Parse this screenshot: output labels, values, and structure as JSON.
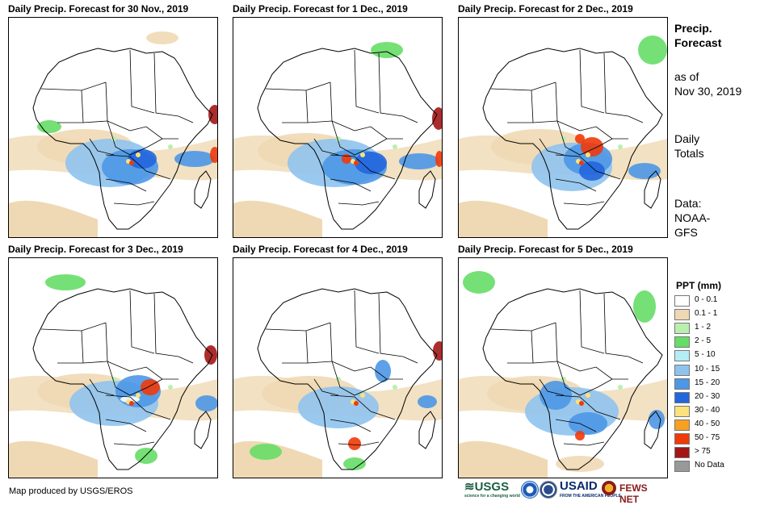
{
  "panels": [
    {
      "title": "Daily Precip. Forecast for 30 Nov., 2019"
    },
    {
      "title": "Daily Precip. Forecast for 1 Dec., 2019"
    },
    {
      "title": "Daily Precip. Forecast for 2 Dec., 2019"
    },
    {
      "title": "Daily Precip. Forecast for 3 Dec., 2019"
    },
    {
      "title": "Daily Precip. Forecast for 4 Dec., 2019"
    },
    {
      "title": "Daily Precip. Forecast for 5 Dec., 2019"
    }
  ],
  "side": {
    "heading_1": "Precip.",
    "heading_2": "Forecast",
    "asof_1": "as of",
    "asof_2": "Nov 30, 2019",
    "totals_1": "Daily",
    "totals_2": "Totals",
    "data_1": "Data:",
    "data_2": "NOAA-",
    "data_3": "GFS"
  },
  "legend": {
    "title": "PPT (mm)",
    "items": [
      {
        "label": "0 - 0.1",
        "color": "#ffffff"
      },
      {
        "label": "0.1 - 1",
        "color": "#efd9b4"
      },
      {
        "label": "1 - 2",
        "color": "#b9f0b0"
      },
      {
        "label": "2 - 5",
        "color": "#66dd66"
      },
      {
        "label": "5 - 10",
        "color": "#b5edf6"
      },
      {
        "label": "10 - 15",
        "color": "#8fc3ee"
      },
      {
        "label": "15 - 20",
        "color": "#4d97e6"
      },
      {
        "label": "20 - 30",
        "color": "#2266dd"
      },
      {
        "label": "30 - 40",
        "color": "#fbe27a"
      },
      {
        "label": "40 - 50",
        "color": "#f8a020"
      },
      {
        "label": "50 - 75",
        "color": "#f03a0a"
      },
      {
        "label": "> 75",
        "color": "#a31616"
      },
      {
        "label": "No Data",
        "color": "#999999"
      }
    ]
  },
  "credit": "Map produced by USGS/EROS",
  "logos": {
    "usgs": "≋USGS",
    "usgs_tag": "science for a changing world",
    "usaid": "USAID",
    "usaid_tag": "FROM THE AMERICAN PEOPLE",
    "fews": "FEWS NET"
  }
}
